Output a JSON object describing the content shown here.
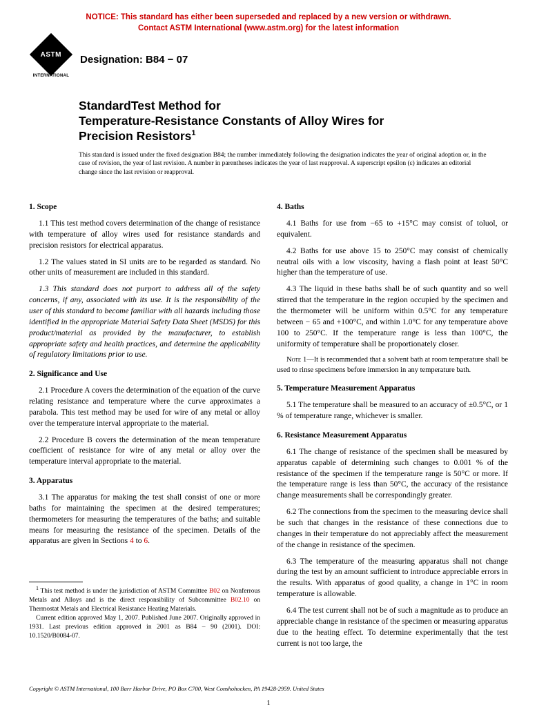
{
  "notice": {
    "line1": "NOTICE: This standard has either been superseded and replaced by a new version or withdrawn.",
    "line2": "Contact ASTM International (www.astm.org) for the latest information",
    "color": "#cc0000"
  },
  "logo": {
    "label": "ASTM",
    "sublabel": "INTERNATIONAL"
  },
  "designation": "Designation: B84 − 07",
  "title": {
    "line1": "StandardTest Method for",
    "line2": "Temperature-Resistance Constants of Alloy Wires for",
    "line3": "Precision Resistors",
    "superscript": "1"
  },
  "issued_note": "This standard is issued under the fixed designation B84; the number immediately following the designation indicates the year of original adoption or, in the case of revision, the year of last revision. A number in parentheses indicates the year of last reapproval. A superscript epsilon (ε) indicates an editorial change since the last revision or reapproval.",
  "link_color": "#cc0000",
  "left_column": {
    "s1": {
      "head": "1. Scope",
      "p1": "1.1 This test method covers determination of the change of resistance with temperature of alloy wires used for resistance standards and precision resistors for electrical apparatus.",
      "p2": "1.2 The values stated in SI units are to be regarded as standard. No other units of measurement are included in this standard.",
      "p3": "1.3 This standard does not purport to address all of the safety concerns, if any, associated with its use. It is the responsibility of the user of this standard to become familiar with all hazards including those identified in the appropriate Material Safety Data Sheet (MSDS) for this product/material as provided by the manufacturer, to establish appropriate safety and health practices, and determine the applicability of regulatory limitations prior to use."
    },
    "s2": {
      "head": "2. Significance and Use",
      "p1": "2.1 Procedure A covers the determination of the equation of the curve relating resistance and temperature where the curve approximates a parabola. This test method may be used for wire of any metal or alloy over the temperature interval appropriate to the material.",
      "p2": "2.2 Procedure B covers the determination of the mean temperature coefficient of resistance for wire of any metal or alloy over the temperature interval appropriate to the material."
    },
    "s3": {
      "head": "3. Apparatus",
      "p1_a": "3.1 The apparatus for making the test shall consist of one or more baths for maintaining the specimen at the desired temperatures; thermometers for measuring the temperatures of the baths; and suitable means for measuring the resistance of the specimen. Details of the apparatus are given in Sections ",
      "link4": "4",
      "mid": " to ",
      "link6": "6",
      "end": "."
    },
    "footnote": {
      "a": "This test method is under the jurisdiction of ASTM Committee ",
      "linkB02": "B02",
      "b": " on Nonferrous Metals and Alloys and is the direct responsibility of Subcommittee ",
      "linkB0210": "B02.10",
      "c": " on Thermostat Metals and Electrical Resistance Heating Materials.",
      "d": "Current edition approved May 1, 2007. Published June 2007. Originally approved in 1931. Last previous edition approved in 2001 as B84 – 90 (2001). DOI: 10.1520/B0084-07.",
      "sup": "1"
    }
  },
  "right_column": {
    "s4": {
      "head": "4. Baths",
      "p1": "4.1 Baths for use from −65 to +15°C may consist of toluol, or equivalent.",
      "p2": "4.2 Baths for use above 15 to 250°C may consist of chemically neutral oils with a low viscosity, having a flash point at least 50°C higher than the temperature of use.",
      "p3": "4.3 The liquid in these baths shall be of such quantity and so well stirred that the temperature in the region occupied by the specimen and the thermometer will be uniform within 0.5°C for any temperature between − 65 and +100°C, and within 1.0°C for any temperature above 100 to 250°C. If the temperature range is less than 100°C, the uniformity of temperature shall be proportionately closer.",
      "note1": "1—It is recommended that a solvent bath at room temperature shall be used to rinse specimens before immersion in any temperature bath.",
      "note_label": "Note"
    },
    "s5": {
      "head": "5. Temperature Measurement Apparatus",
      "p1": "5.1 The temperature shall be measured to an accuracy of ±0.5°C, or 1 % of temperature range, whichever is smaller."
    },
    "s6": {
      "head": "6. Resistance Measurement Apparatus",
      "p1": "6.1 The change of resistance of the specimen shall be measured by apparatus capable of determining such changes to 0.001 % of the resistance of the specimen if the temperature range is 50°C or more. If the temperature range is less than 50°C, the accuracy of the resistance change measurements shall be correspondingly greater.",
      "p2": "6.2 The connections from the specimen to the measuring device shall be such that changes in the resistance of these connections due to changes in their temperature do not appreciably affect the measurement of the change in resistance of the specimen.",
      "p3": "6.3 The temperature of the measuring apparatus shall not change during the test by an amount sufficient to introduce appreciable errors in the results. With apparatus of good quality, a change in 1°C in room temperature is allowable.",
      "p4": "6.4 The test current shall not be of such a magnitude as to produce an appreciable change in resistance of the specimen or measuring apparatus due to the heating effect. To determine experimentally that the test current is not too large, the"
    }
  },
  "copyright": "Copyright © ASTM International, 100 Barr Harbor Drive, PO Box C700, West Conshohocken, PA 19428-2959. United States",
  "page_number": "1"
}
